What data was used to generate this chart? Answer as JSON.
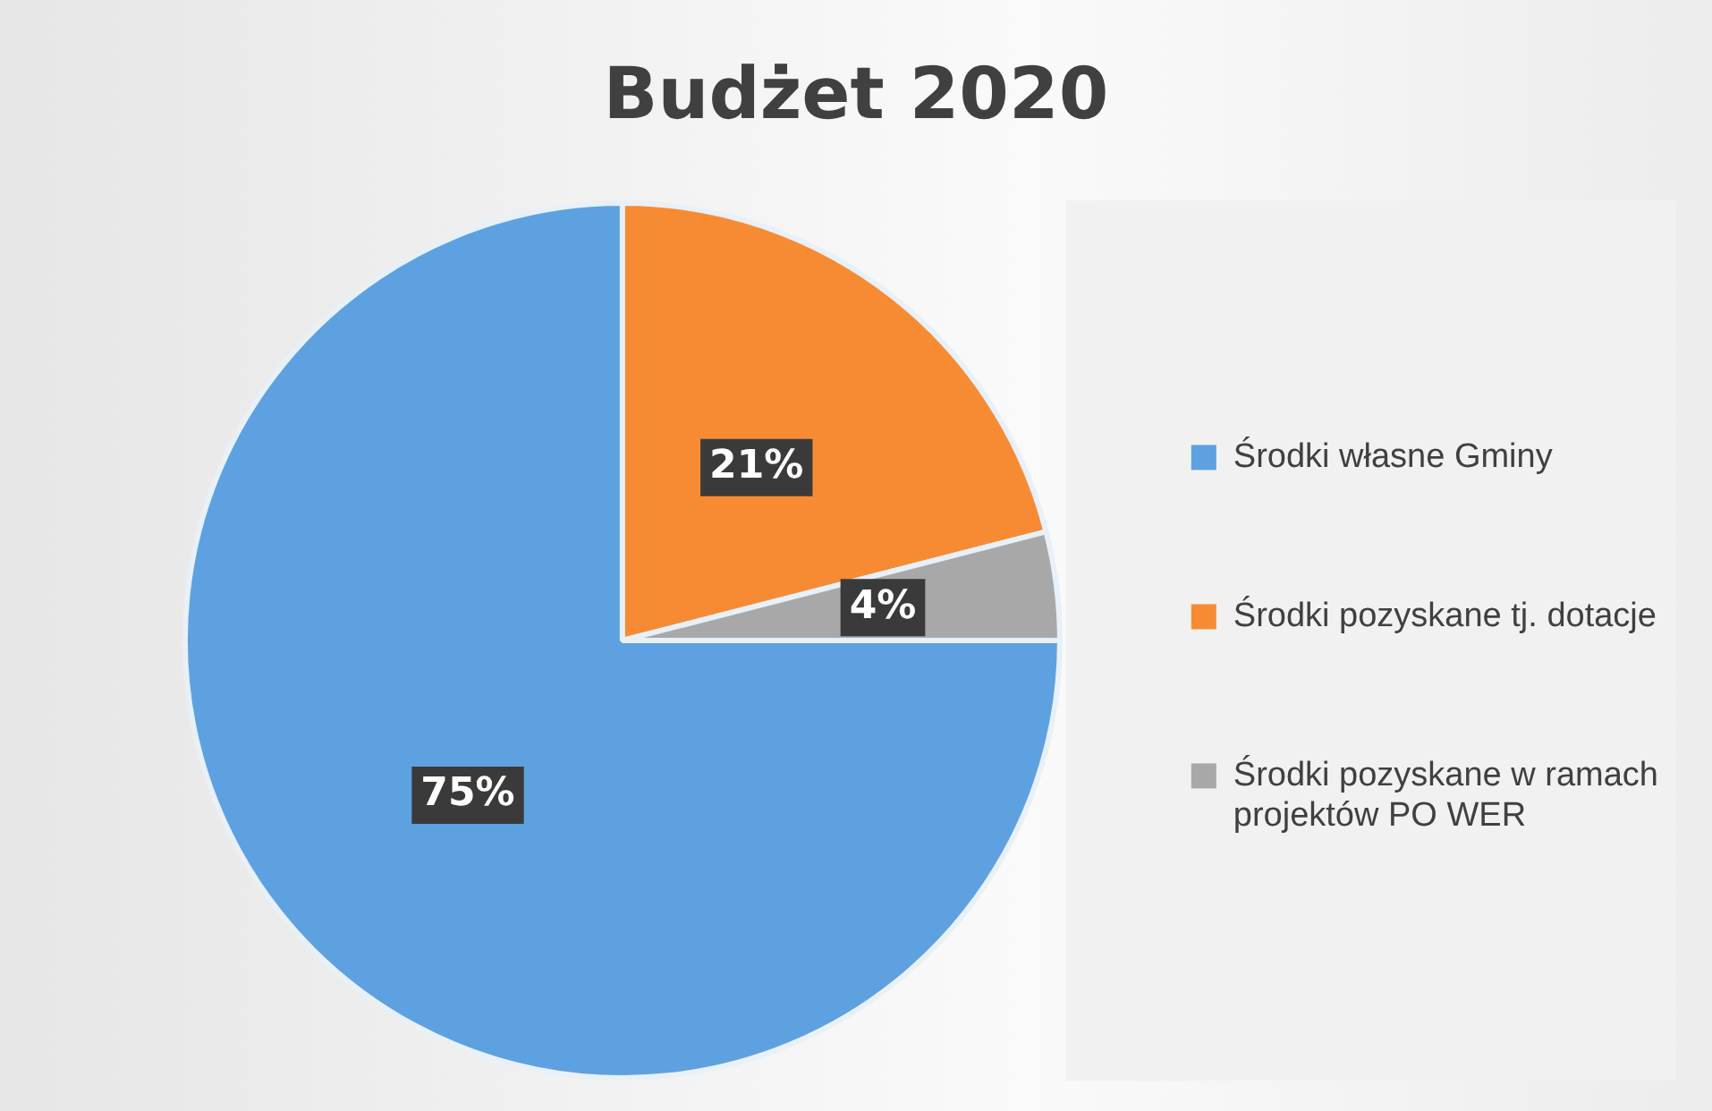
{
  "chart_data": {
    "type": "pie",
    "title": "Budżet 2020",
    "categories": [
      "Środki własne Gminy",
      "Środki pozyskane tj. dotacje",
      "Środki pozyskane w ramach projektów PO WER"
    ],
    "values": [
      75,
      21,
      4
    ],
    "colors": [
      "#5ea1e0",
      "#f78b34",
      "#a8a8a8"
    ],
    "value_labels": [
      "75%",
      "21%",
      "4%"
    ],
    "legend": "right"
  }
}
